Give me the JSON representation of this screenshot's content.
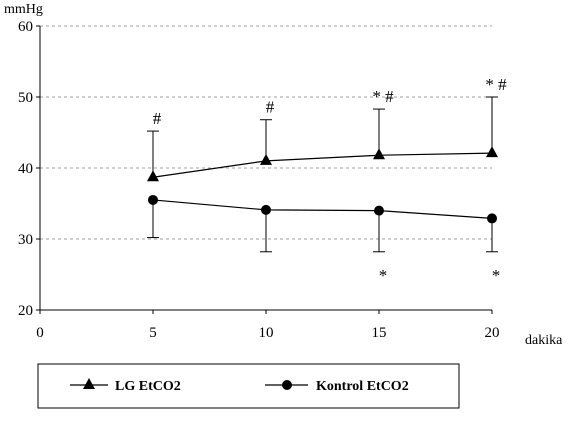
{
  "chart_data": {
    "type": "line",
    "title": "",
    "ylabel": "mmHg",
    "xlabel": "dakika",
    "xlim": [
      0,
      20
    ],
    "ylim": [
      20,
      60
    ],
    "xticks": [
      0,
      5,
      10,
      15,
      20
    ],
    "yticks": [
      20,
      30,
      40,
      50,
      60
    ],
    "grid": "horizontal dashed",
    "legend_position": "bottom",
    "series": [
      {
        "name": "LG EtCO2",
        "marker": "triangle",
        "x": [
          5,
          10,
          15,
          20
        ],
        "values": [
          38.7,
          41.0,
          41.8,
          42.1
        ],
        "error_upper": [
          45.2,
          46.8,
          48.3,
          50.0
        ],
        "annotations": [
          "#",
          "#",
          "* #",
          "* #"
        ]
      },
      {
        "name": "Kontrol EtCO2",
        "marker": "circle",
        "x": [
          5,
          10,
          15,
          20
        ],
        "values": [
          35.5,
          34.1,
          34.0,
          32.9
        ],
        "error_lower": [
          30.2,
          28.2,
          28.2,
          28.2
        ],
        "annotations": [
          "",
          "",
          "*",
          "*"
        ]
      }
    ]
  },
  "colors": {
    "line": "#000000",
    "grid": "#a0a0a0",
    "background": "#ffffff"
  }
}
